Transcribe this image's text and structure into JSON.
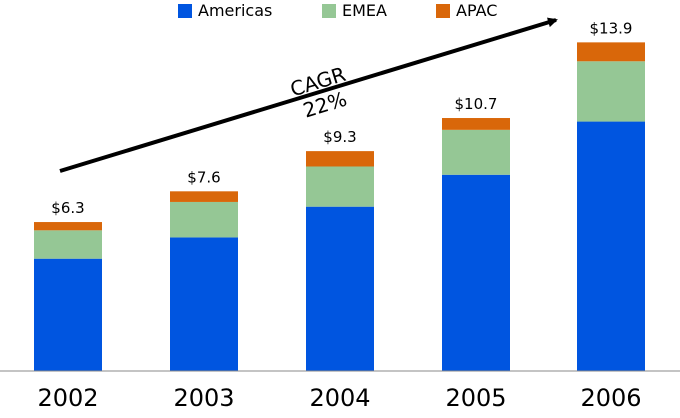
{
  "chart_data": {
    "type": "bar",
    "stacked": true,
    "categories": [
      "2002",
      "2003",
      "2004",
      "2005",
      "2006"
    ],
    "series": [
      {
        "name": "Americas",
        "color": "#0055e0",
        "values": [
          4.75,
          5.65,
          6.95,
          8.3,
          10.55
        ]
      },
      {
        "name": "EMEA",
        "color": "#95c795",
        "values": [
          1.2,
          1.5,
          1.7,
          1.9,
          2.55
        ]
      },
      {
        "name": "APAC",
        "color": "#d9670a",
        "values": [
          0.35,
          0.45,
          0.65,
          0.5,
          0.8
        ]
      }
    ],
    "totals": [
      "$6.3",
      "$7.6",
      "$9.3",
      "$10.7",
      "$13.9"
    ],
    "annotation": {
      "line1": "CAGR",
      "line2": "22%"
    },
    "ylim": [
      0,
      14.0
    ],
    "legend_position": "top-center",
    "grid": false
  }
}
